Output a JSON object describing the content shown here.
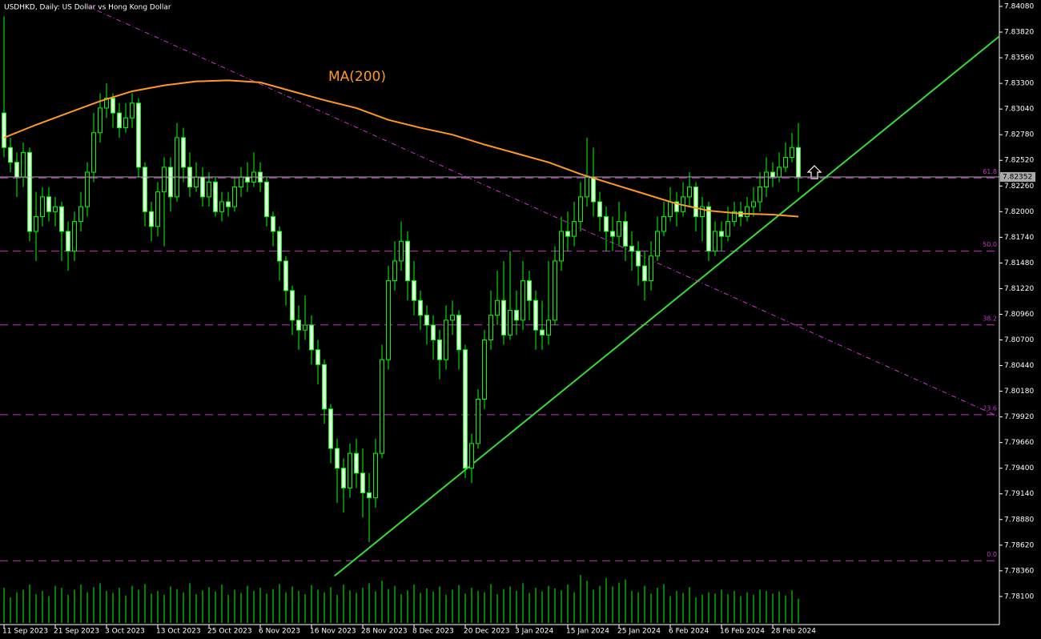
{
  "chart_data": {
    "type": "candlestick",
    "title": "USDHKD, Daily:  US Dollar vs Hong Kong Dollar",
    "annotation": "MA(200)",
    "ylim": [
      7.77815,
      7.84145
    ],
    "yticks": [
      {
        "value": 7.8408,
        "label": "7.84080"
      },
      {
        "value": 7.8382,
        "label": "7.83820"
      },
      {
        "value": 7.8356,
        "label": "7.83560"
      },
      {
        "value": 7.833,
        "label": "7.83300"
      },
      {
        "value": 7.8304,
        "label": "7.83040"
      },
      {
        "value": 7.8278,
        "label": "7.82780"
      },
      {
        "value": 7.8252,
        "label": "7.82520"
      },
      {
        "value": 7.8226,
        "label": "7.82260"
      },
      {
        "value": 7.82,
        "label": "7.82000"
      },
      {
        "value": 7.8174,
        "label": "7.81740"
      },
      {
        "value": 7.8148,
        "label": "7.81480"
      },
      {
        "value": 7.8122,
        "label": "7.81220"
      },
      {
        "value": 7.8096,
        "label": "7.80960"
      },
      {
        "value": 7.807,
        "label": "7.80700"
      },
      {
        "value": 7.8044,
        "label": "7.80440"
      },
      {
        "value": 7.8018,
        "label": "7.80180"
      },
      {
        "value": 7.7992,
        "label": "7.79920"
      },
      {
        "value": 7.7966,
        "label": "7.79660"
      },
      {
        "value": 7.794,
        "label": "7.79400"
      },
      {
        "value": 7.7914,
        "label": "7.79140"
      },
      {
        "value": 7.7888,
        "label": "7.78880"
      },
      {
        "value": 7.7862,
        "label": "7.78620"
      },
      {
        "value": 7.7836,
        "label": "7.78360"
      },
      {
        "value": 7.781,
        "label": "7.78100"
      }
    ],
    "xticks": [
      {
        "value": 0,
        "label": "11 Sep 2023"
      },
      {
        "value": 8,
        "label": "21 Sep 2023"
      },
      {
        "value": 16,
        "label": "3 Oct 2023"
      },
      {
        "value": 24,
        "label": "13 Oct 2023"
      },
      {
        "value": 32,
        "label": "25 Oct 2023"
      },
      {
        "value": 40,
        "label": "6 Nov 2023"
      },
      {
        "value": 48,
        "label": "16 Nov 2023"
      },
      {
        "value": 56,
        "label": "28 Nov 2023"
      },
      {
        "value": 64,
        "label": "8 Dec 2023"
      },
      {
        "value": 72,
        "label": "20 Dec 2023"
      },
      {
        "value": 80,
        "label": "3 Jan 2024"
      },
      {
        "value": 88,
        "label": "15 Jan 2024"
      },
      {
        "value": 96,
        "label": "25 Jan 2024"
      },
      {
        "value": 104,
        "label": "6 Feb 2024"
      },
      {
        "value": 112,
        "label": "16 Feb 2024"
      },
      {
        "value": 120,
        "label": "28 Feb 2024"
      }
    ],
    "open": [
      7.83,
      7.8265,
      7.825,
      7.8235,
      7.826,
      7.818,
      7.8195,
      7.8215,
      7.82,
      7.8205,
      7.818,
      7.816,
      7.819,
      7.8205,
      7.824,
      7.828,
      7.8305,
      7.8315,
      7.83,
      7.8285,
      7.8295,
      7.831,
      7.8245,
      7.82,
      7.8185,
      7.822,
      7.8245,
      7.8215,
      7.8275,
      7.8245,
      7.8225,
      7.8235,
      7.8215,
      7.823,
      7.82,
      7.821,
      7.8205,
      7.8225,
      7.8235,
      7.823,
      7.824,
      7.823,
      7.8195,
      7.818,
      7.815,
      7.812,
      7.809,
      7.808,
      7.8085,
      7.806,
      7.8045,
      7.8,
      7.796,
      7.794,
      7.792,
      7.7955,
      7.7935,
      7.7915,
      7.791,
      7.7955,
      7.805,
      7.813,
      7.815,
      7.817,
      7.813,
      7.811,
      7.8095,
      7.8085,
      7.807,
      7.805,
      7.809,
      7.8095,
      7.806,
      7.794,
      7.7965,
      7.801,
      7.807,
      7.8095,
      7.811,
      7.8075,
      7.81,
      7.809,
      7.813,
      7.811,
      7.808,
      7.8075,
      7.809,
      7.815,
      7.818,
      7.8175,
      7.819,
      7.8215,
      7.8235,
      7.821,
      7.8195,
      7.818,
      7.8175,
      7.819,
      7.8165,
      7.816,
      7.8145,
      7.813,
      7.8155,
      7.818,
      7.8195,
      7.821,
      7.82,
      7.8215,
      7.8225,
      7.8195,
      7.8205,
      7.816,
      7.818,
      7.8175,
      7.819,
      7.82,
      7.8195,
      7.8205,
      7.821,
      7.8225,
      7.824,
      7.8235,
      7.8245,
      7.8255,
      7.8265
    ],
    "high": [
      7.8398,
      7.8275,
      7.826,
      7.827,
      7.8265,
      7.822,
      7.8225,
      7.8225,
      7.8215,
      7.821,
      7.819,
      7.82,
      7.822,
      7.825,
      7.83,
      7.832,
      7.833,
      7.832,
      7.831,
      7.831,
      7.832,
      7.8315,
      7.825,
      7.821,
      7.823,
      7.8255,
      7.8255,
      7.829,
      7.8285,
      7.826,
      7.825,
      7.8245,
      7.824,
      7.8235,
      7.822,
      7.822,
      7.8235,
      7.8245,
      7.825,
      7.826,
      7.825,
      7.8235,
      7.82,
      7.8185,
      7.8155,
      7.8125,
      7.8105,
      7.8115,
      7.8095,
      7.807,
      7.805,
      7.8005,
      7.797,
      7.795,
      7.7965,
      7.797,
      7.796,
      7.7935,
      7.797,
      7.8065,
      7.8145,
      7.817,
      7.819,
      7.818,
      7.815,
      7.812,
      7.8105,
      7.8095,
      7.808,
      7.8105,
      7.811,
      7.81,
      7.8065,
      7.7975,
      7.802,
      7.808,
      7.812,
      7.814,
      7.815,
      7.816,
      7.812,
      7.815,
      7.814,
      7.812,
      7.811,
      7.815,
      7.8165,
      7.8195,
      7.82,
      7.821,
      7.823,
      7.8275,
      7.8265,
      7.822,
      7.8205,
      7.8195,
      7.821,
      7.82,
      7.818,
      7.817,
      7.816,
      7.817,
      7.8195,
      7.821,
      7.8225,
      7.822,
      7.823,
      7.824,
      7.823,
      7.8215,
      7.821,
      7.819,
      7.819,
      7.8205,
      7.821,
      7.821,
      7.8215,
      7.8225,
      7.824,
      7.8255,
      7.825,
      7.826,
      7.827,
      7.828,
      7.829
    ],
    "low": [
      7.8255,
      7.824,
      7.8215,
      7.8225,
      7.817,
      7.815,
      7.8185,
      7.819,
      7.8185,
      7.815,
      7.814,
      7.815,
      7.818,
      7.8195,
      7.823,
      7.827,
      7.8295,
      7.8285,
      7.8275,
      7.828,
      7.8285,
      7.8235,
      7.8185,
      7.817,
      7.8175,
      7.8165,
      7.82,
      7.821,
      7.823,
      7.8215,
      7.822,
      7.8205,
      7.8205,
      7.8195,
      7.819,
      7.8195,
      7.82,
      7.8215,
      7.822,
      7.8225,
      7.822,
      7.8185,
      7.8165,
      7.813,
      7.8105,
      7.8075,
      7.806,
      7.807,
      7.8045,
      7.8025,
      7.7985,
      7.7945,
      7.7905,
      7.7895,
      7.791,
      7.792,
      7.789,
      7.7865,
      7.79,
      7.795,
      7.804,
      7.812,
      7.814,
      7.811,
      7.8095,
      7.808,
      7.8065,
      7.805,
      7.803,
      7.804,
      7.8075,
      7.804,
      7.793,
      7.7925,
      7.796,
      7.8,
      7.806,
      7.8085,
      7.8065,
      7.807,
      7.8075,
      7.808,
      7.809,
      7.806,
      7.806,
      7.8065,
      7.8085,
      7.814,
      7.816,
      7.8165,
      7.818,
      7.8205,
      7.8195,
      7.818,
      7.816,
      7.816,
      7.8165,
      7.815,
      7.814,
      7.8125,
      7.811,
      7.812,
      7.815,
      7.8175,
      7.819,
      7.8185,
      7.8195,
      7.8205,
      7.818,
      7.817,
      7.815,
      7.8155,
      7.816,
      7.817,
      7.8185,
      7.8185,
      7.819,
      7.8195,
      7.82,
      7.8215,
      7.8225,
      7.823,
      7.824,
      7.825,
      7.822
    ],
    "close": [
      7.8265,
      7.825,
      7.8235,
      7.826,
      7.818,
      7.8195,
      7.8215,
      7.82,
      7.8205,
      7.818,
      7.816,
      7.819,
      7.8205,
      7.824,
      7.828,
      7.8305,
      7.8315,
      7.83,
      7.8285,
      7.8295,
      7.831,
      7.8245,
      7.82,
      7.8185,
      7.822,
      7.8245,
      7.8215,
      7.8275,
      7.8245,
      7.8225,
      7.8235,
      7.8215,
      7.823,
      7.82,
      7.821,
      7.8205,
      7.8225,
      7.8235,
      7.823,
      7.824,
      7.823,
      7.8195,
      7.818,
      7.815,
      7.812,
      7.809,
      7.808,
      7.8085,
      7.806,
      7.8045,
      7.8,
      7.796,
      7.794,
      7.792,
      7.7955,
      7.7935,
      7.7915,
      7.791,
      7.7955,
      7.805,
      7.813,
      7.815,
      7.817,
      7.813,
      7.811,
      7.8095,
      7.8085,
      7.807,
      7.805,
      7.809,
      7.8095,
      7.806,
      7.794,
      7.7965,
      7.801,
      7.807,
      7.8095,
      7.811,
      7.8075,
      7.81,
      7.809,
      7.813,
      7.811,
      7.808,
      7.8075,
      7.809,
      7.815,
      7.818,
      7.8175,
      7.819,
      7.8215,
      7.8235,
      7.821,
      7.8195,
      7.818,
      7.8175,
      7.819,
      7.8165,
      7.816,
      7.8145,
      7.813,
      7.8155,
      7.818,
      7.8195,
      7.821,
      7.82,
      7.8215,
      7.8225,
      7.8195,
      7.8205,
      7.816,
      7.818,
      7.8175,
      7.819,
      7.82,
      7.8195,
      7.8205,
      7.821,
      7.8225,
      7.824,
      7.8235,
      7.8245,
      7.8255,
      7.8265,
      7.8235
    ],
    "volume": [
      55,
      40,
      48,
      52,
      60,
      45,
      50,
      42,
      58,
      55,
      44,
      52,
      60,
      48,
      56,
      62,
      50,
      47,
      55,
      43,
      58,
      52,
      61,
      46,
      50,
      44,
      57,
      53,
      48,
      62,
      45,
      51,
      56,
      49,
      60,
      44,
      52,
      47,
      58,
      50,
      55,
      46,
      53,
      61,
      48,
      57,
      50,
      45,
      59,
      52,
      48,
      56,
      44,
      60,
      51,
      47,
      55,
      62,
      49,
      66,
      53,
      58,
      45,
      51,
      60,
      47,
      54,
      49,
      57,
      44,
      52,
      59,
      46,
      55,
      50,
      48,
      61,
      45,
      53,
      57,
      50,
      62,
      47,
      55,
      49,
      58,
      54,
      51,
      60,
      48,
      75,
      66,
      52,
      58,
      70,
      57,
      63,
      68,
      50,
      48,
      58,
      46,
      55,
      61,
      42,
      50,
      47,
      56,
      40,
      44,
      48,
      46,
      52,
      45,
      50,
      42,
      48,
      44,
      52,
      50,
      46,
      49,
      43,
      51,
      38
    ],
    "candle_color": "#00ff00",
    "up_fill": "#000000",
    "down_fill": "#e8ffe8",
    "ma": {
      "color": "#ff9a1f",
      "x": [
        0,
        5,
        10,
        15,
        20,
        25,
        30,
        35,
        40,
        45,
        50,
        55,
        60,
        65,
        70,
        75,
        80,
        85,
        90,
        95,
        100,
        105,
        110,
        115,
        120,
        124
      ],
      "values": [
        7.8275,
        7.8288,
        7.83,
        7.8312,
        7.8322,
        7.8328,
        7.8332,
        7.8333,
        7.8331,
        7.8322,
        7.8313,
        7.8305,
        7.8293,
        7.8285,
        7.8278,
        7.8268,
        7.8259,
        7.825,
        7.8238,
        7.8228,
        7.8218,
        7.8208,
        7.8201,
        7.8198,
        7.8197,
        7.8195
      ]
    },
    "trendlines": [
      {
        "color": "#33dd33",
        "dashed": false,
        "start": [
          51.6,
          7.78308
        ],
        "end": [
          155.4,
          7.83779
        ]
      },
      {
        "color": "#cc33cc",
        "dashed": true,
        "start": [
          13.1,
          7.8408
        ],
        "end": [
          155.4,
          7.79918
        ]
      }
    ],
    "fib_color": "#cc33cc",
    "fib_levels": [
      {
        "level": "61.8",
        "price": 7.82341
      },
      {
        "level": "50.0",
        "price": 7.816
      },
      {
        "level": "38.2",
        "price": 7.80852
      },
      {
        "level": "23.6",
        "price": 7.79942
      },
      {
        "level": "0.0",
        "price": 7.78462
      }
    ],
    "last_price": 7.82352
  }
}
